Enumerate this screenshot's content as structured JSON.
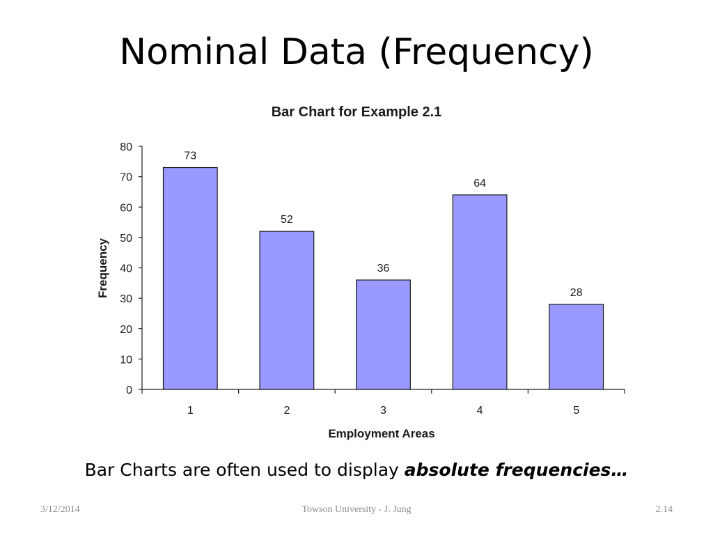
{
  "slide": {
    "title": "Nominal Data (Frequency)",
    "caption_prefix": "Bar Charts are often used to display ",
    "caption_emphasis": "absolute frequencies…",
    "footer": {
      "date": "3/12/2014",
      "source": "Towson University - J. Jung",
      "page": "2.14"
    }
  },
  "chart_data": {
    "type": "bar",
    "title": "Bar Chart for Example 2.1",
    "xlabel": "Employment Areas",
    "ylabel": "Frequency",
    "categories": [
      "1",
      "2",
      "3",
      "4",
      "5"
    ],
    "values": [
      73,
      52,
      36,
      64,
      28
    ],
    "ylim": [
      0,
      80
    ],
    "yticks": [
      0,
      10,
      20,
      30,
      40,
      50,
      60,
      70,
      80
    ],
    "data_labels": true,
    "grid": false,
    "legend": "none",
    "bar_color": "#9999ff"
  }
}
